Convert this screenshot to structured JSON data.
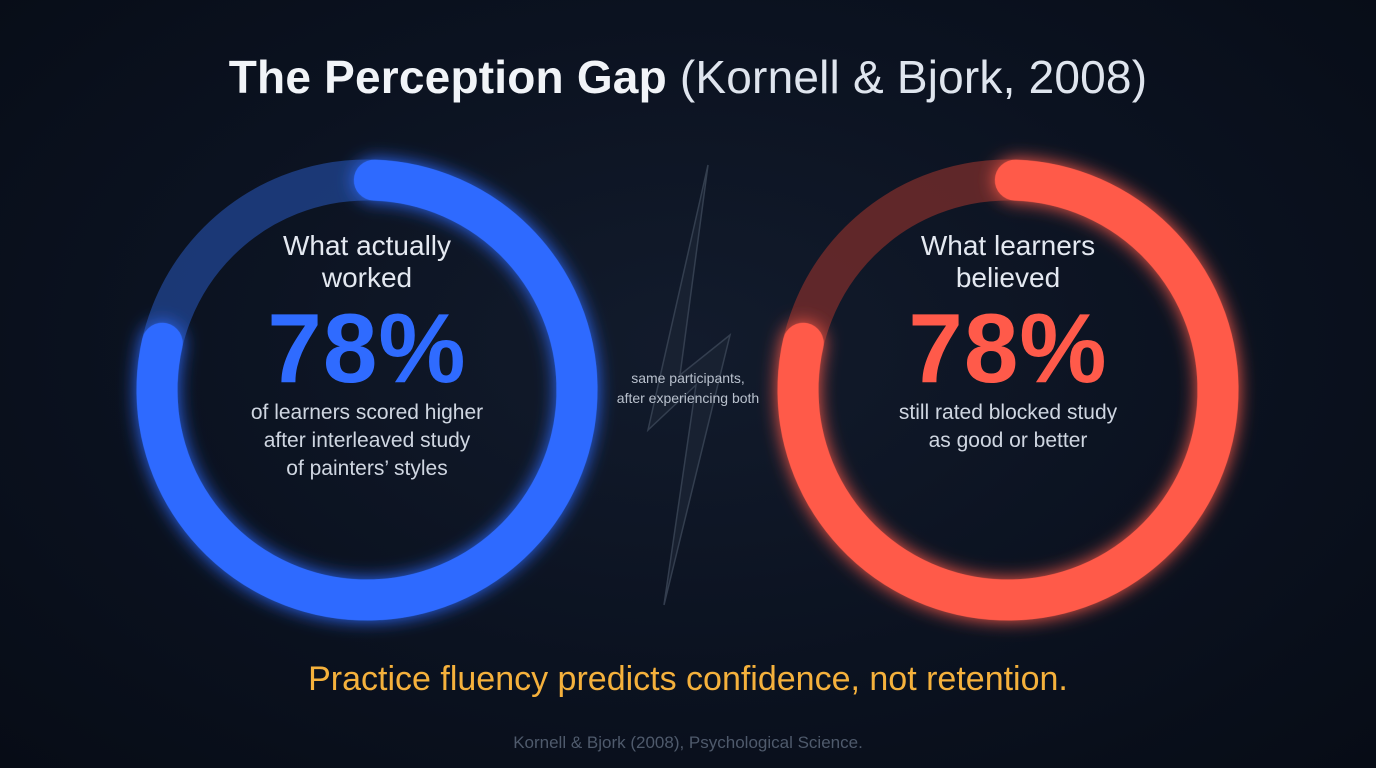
{
  "title": {
    "main": "The Perception Gap",
    "citation": "(Kornell & Bjork, 2008)"
  },
  "left_card": {
    "label_line1": "What actually",
    "label_line2": "worked",
    "percent_text": "78%",
    "percent_value": 78,
    "desc_line1": "of learners scored higher",
    "desc_line2": "after interleaved study",
    "desc_line3": "of painters’ styles",
    "color": "#2f6bff"
  },
  "right_card": {
    "label_line1": "What learners",
    "label_line2": "believed",
    "percent_text": "78%",
    "percent_value": 78,
    "desc_line1": "still rated blocked study",
    "desc_line2": "as good or better",
    "color": "#ff5a4a"
  },
  "middle": {
    "line1": "same participants,",
    "line2": "after experiencing both",
    "icon": "lightning-bolt-icon"
  },
  "takeaway": "Practice fluency predicts confidence, not retention.",
  "source": "Kornell & Bjork (2008), Psychological Science."
}
